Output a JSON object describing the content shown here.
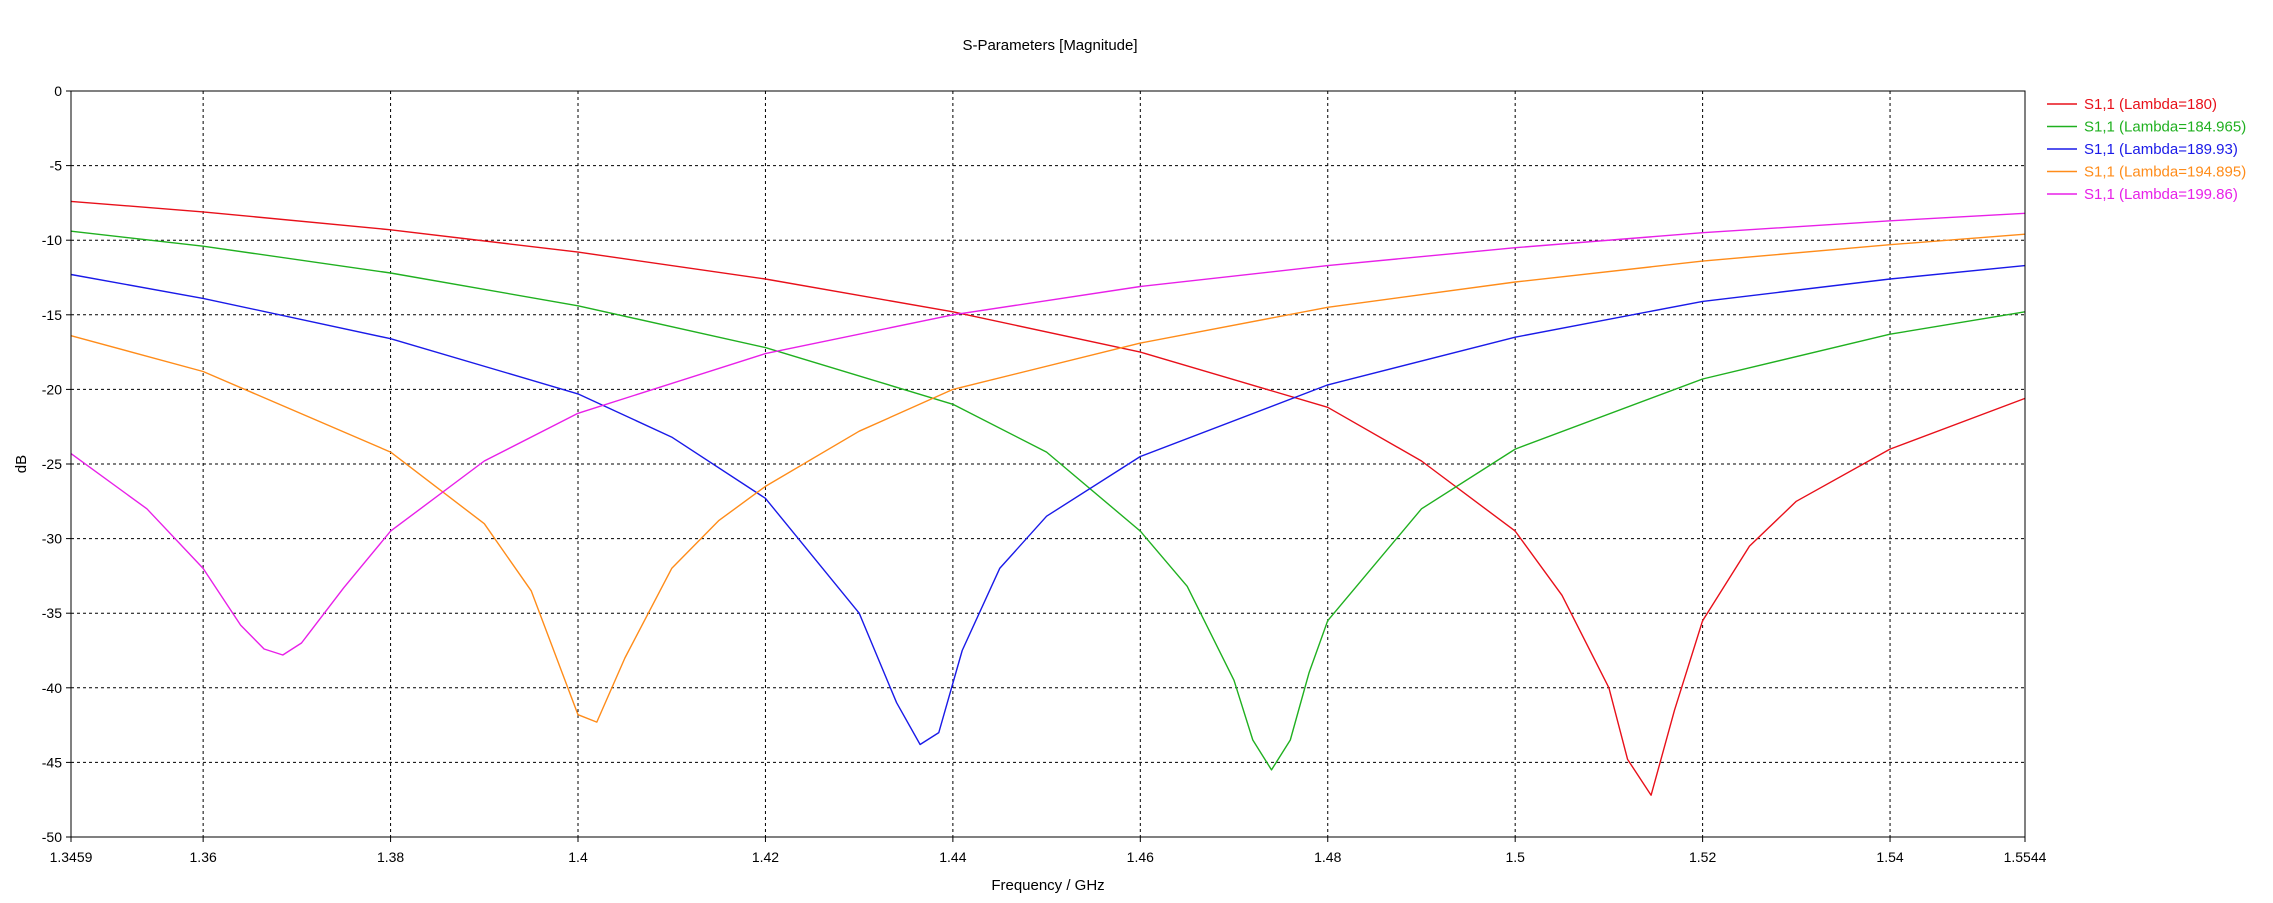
{
  "chart_data": {
    "type": "line",
    "title": "S-Parameters [Magnitude]",
    "xlabel": "Frequency / GHz",
    "ylabel": "dB",
    "xlim": [
      1.3459,
      1.5544
    ],
    "ylim": [
      -50,
      0
    ],
    "x_ticks": [
      {
        "value": 1.3459,
        "label": "1.3459"
      },
      {
        "value": 1.36,
        "label": "1.36"
      },
      {
        "value": 1.38,
        "label": "1.38"
      },
      {
        "value": 1.4,
        "label": "1.4"
      },
      {
        "value": 1.42,
        "label": "1.42"
      },
      {
        "value": 1.44,
        "label": "1.44"
      },
      {
        "value": 1.46,
        "label": "1.46"
      },
      {
        "value": 1.48,
        "label": "1.48"
      },
      {
        "value": 1.5,
        "label": "1.5"
      },
      {
        "value": 1.52,
        "label": "1.52"
      },
      {
        "value": 1.54,
        "label": "1.54"
      },
      {
        "value": 1.5544,
        "label": "1.5544"
      }
    ],
    "y_ticks": [
      {
        "value": 0,
        "label": "0"
      },
      {
        "value": -5,
        "label": "-5"
      },
      {
        "value": -10,
        "label": "-10"
      },
      {
        "value": -15,
        "label": "-15"
      },
      {
        "value": -20,
        "label": "-20"
      },
      {
        "value": -25,
        "label": "-25"
      },
      {
        "value": -30,
        "label": "-30"
      },
      {
        "value": -35,
        "label": "-35"
      },
      {
        "value": -40,
        "label": "-40"
      },
      {
        "value": -45,
        "label": "-45"
      },
      {
        "value": -50,
        "label": "-50"
      }
    ],
    "grid": true,
    "legend_position": "top-right-outside",
    "series": [
      {
        "name": "S1,1 (Lambda=180)",
        "color": "#e8101a",
        "x": [
          1.3459,
          1.36,
          1.38,
          1.4,
          1.42,
          1.44,
          1.46,
          1.48,
          1.49,
          1.5,
          1.505,
          1.51,
          1.512,
          1.5145,
          1.517,
          1.52,
          1.525,
          1.53,
          1.54,
          1.5544
        ],
        "y": [
          -7.4,
          -8.1,
          -9.3,
          -10.8,
          -12.6,
          -14.8,
          -17.5,
          -21.2,
          -24.8,
          -29.5,
          -33.8,
          -40.0,
          -44.8,
          -47.2,
          -41.5,
          -35.5,
          -30.5,
          -27.5,
          -24.0,
          -20.6
        ]
      },
      {
        "name": "S1,1 (Lambda=184.965)",
        "color": "#20b020",
        "x": [
          1.3459,
          1.36,
          1.38,
          1.4,
          1.42,
          1.44,
          1.45,
          1.46,
          1.465,
          1.47,
          1.472,
          1.474,
          1.476,
          1.478,
          1.48,
          1.49,
          1.5,
          1.52,
          1.54,
          1.5544
        ],
        "y": [
          -9.4,
          -10.4,
          -12.2,
          -14.4,
          -17.2,
          -21.0,
          -24.2,
          -29.5,
          -33.2,
          -39.5,
          -43.5,
          -45.5,
          -43.5,
          -39.0,
          -35.5,
          -28.0,
          -24.0,
          -19.3,
          -16.3,
          -14.8
        ]
      },
      {
        "name": "S1,1 (Lambda=189.93)",
        "color": "#1a1ae8",
        "x": [
          1.3459,
          1.36,
          1.38,
          1.4,
          1.41,
          1.42,
          1.43,
          1.434,
          1.4365,
          1.4385,
          1.441,
          1.445,
          1.45,
          1.46,
          1.48,
          1.5,
          1.52,
          1.54,
          1.5544
        ],
        "y": [
          -12.3,
          -13.9,
          -16.6,
          -20.3,
          -23.2,
          -27.3,
          -35.0,
          -41.0,
          -43.8,
          -43.0,
          -37.5,
          -32.0,
          -28.5,
          -24.5,
          -19.7,
          -16.5,
          -14.1,
          -12.6,
          -11.7
        ]
      },
      {
        "name": "S1,1 (Lambda=194.895)",
        "color": "#ff8c1a",
        "x": [
          1.3459,
          1.36,
          1.38,
          1.39,
          1.395,
          1.4,
          1.402,
          1.405,
          1.41,
          1.415,
          1.42,
          1.43,
          1.44,
          1.46,
          1.48,
          1.5,
          1.52,
          1.54,
          1.5544
        ],
        "y": [
          -16.4,
          -18.8,
          -24.2,
          -29.0,
          -33.5,
          -41.8,
          -42.3,
          -38.0,
          -32.0,
          -28.8,
          -26.5,
          -22.8,
          -20.0,
          -16.9,
          -14.5,
          -12.8,
          -11.4,
          -10.3,
          -9.6
        ]
      },
      {
        "name": "S1,1 (Lambda=199.86)",
        "color": "#e820e8",
        "x": [
          1.3459,
          1.354,
          1.36,
          1.364,
          1.3665,
          1.3685,
          1.3705,
          1.375,
          1.38,
          1.39,
          1.4,
          1.42,
          1.44,
          1.46,
          1.48,
          1.5,
          1.52,
          1.54,
          1.5544
        ],
        "y": [
          -24.3,
          -28.0,
          -32.0,
          -35.8,
          -37.4,
          -37.8,
          -37.0,
          -33.3,
          -29.5,
          -24.8,
          -21.6,
          -17.6,
          -15.0,
          -13.1,
          -11.7,
          -10.5,
          -9.5,
          -8.7,
          -8.2
        ]
      }
    ]
  }
}
